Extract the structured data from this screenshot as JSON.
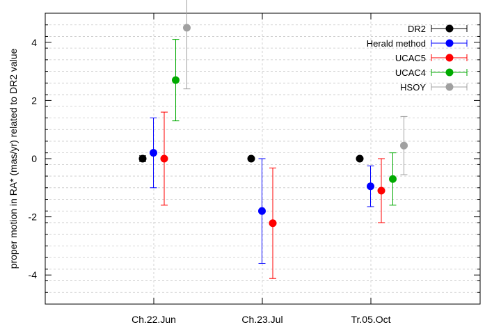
{
  "chart_data": {
    "type": "scatter",
    "title": "",
    "xlabel": "",
    "ylabel": "proper motion in RA* (mas/yr) related to DR2 value",
    "categories": [
      "Ch.22.Jun",
      "Ch.23.Jul",
      "Tr.05.Oct"
    ],
    "ylim": [
      -5,
      5
    ],
    "yticks": [
      -4,
      -2,
      0,
      2,
      4
    ],
    "yminor_step": 0.4,
    "grid": true,
    "legend_position": "top-right",
    "series": [
      {
        "name": "DR2",
        "color": "#000000",
        "points": [
          {
            "category": "Ch.22.Jun",
            "y": 0.0,
            "err": 0.1
          },
          {
            "category": "Ch.23.Jul",
            "y": 0.0,
            "err": 0.0
          },
          {
            "category": "Tr.05.Oct",
            "y": 0.0,
            "err": 0.0
          }
        ]
      },
      {
        "name": "Herald method",
        "color": "#0000ff",
        "points": [
          {
            "category": "Ch.22.Jun",
            "y": 0.2,
            "err": 1.2
          },
          {
            "category": "Ch.23.Jul",
            "y": -1.8,
            "err": 1.8
          },
          {
            "category": "Tr.05.Oct",
            "y": -0.95,
            "err": 0.7
          }
        ]
      },
      {
        "name": "UCAC5",
        "color": "#ff0000",
        "points": [
          {
            "category": "Ch.22.Jun",
            "y": 0.0,
            "err": 1.6
          },
          {
            "category": "Ch.23.Jul",
            "y": -2.22,
            "err": 1.9
          },
          {
            "category": "Tr.05.Oct",
            "y": -1.1,
            "err": 1.1
          }
        ]
      },
      {
        "name": "UCAC4",
        "color": "#00aa00",
        "points": [
          {
            "category": "Ch.22.Jun",
            "y": 2.7,
            "err": 1.4
          },
          {
            "category": "Tr.05.Oct",
            "y": -0.7,
            "err": 0.9
          }
        ]
      },
      {
        "name": "HSOY",
        "color": "#a0a0a0",
        "points": [
          {
            "category": "Ch.22.Jun",
            "y": 4.5,
            "err": 2.1
          },
          {
            "category": "Tr.05.Oct",
            "y": 0.45,
            "err": 1.0
          }
        ]
      }
    ]
  }
}
